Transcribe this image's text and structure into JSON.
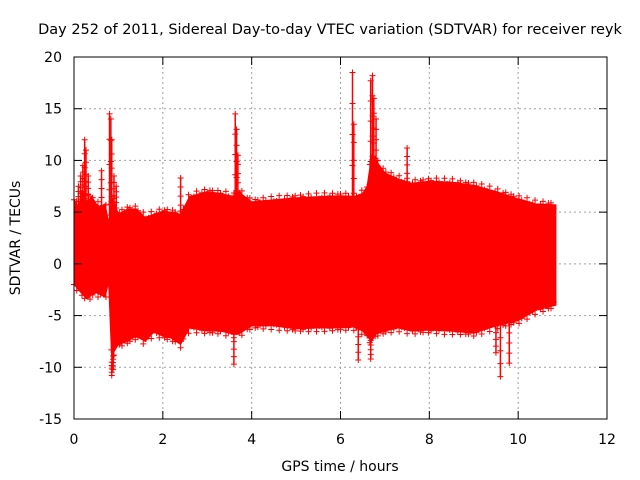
{
  "chart_data": {
    "type": "scatter",
    "title": "Day 252 of 2011, Sidereal Day-to-day VTEC variation (SDTVAR) for receiver reyk",
    "xlabel": "GPS time / hours",
    "ylabel": "SDTVAR / TECUs",
    "xlim": [
      0,
      12
    ],
    "ylim": [
      -15,
      20
    ],
    "x_ticks": [
      0,
      2,
      4,
      6,
      8,
      10,
      12
    ],
    "y_ticks": [
      -15,
      -10,
      -5,
      0,
      5,
      10,
      15,
      20
    ],
    "x_tick_labels": [
      "0",
      "2",
      "4",
      "6",
      "8",
      "10",
      "12"
    ],
    "y_tick_labels": [
      "-15",
      "-10",
      "-5",
      "0",
      "5",
      "10",
      "15",
      "20"
    ],
    "grid": true,
    "legend": "none",
    "marker": "+",
    "series": [
      {
        "name": "SDTVAR",
        "color": "#ff0000",
        "envelope": {
          "x": [
            0.0,
            0.1,
            0.2,
            0.3,
            0.4,
            0.5,
            0.6,
            0.7,
            0.78,
            0.85,
            0.9,
            1.0,
            1.2,
            1.4,
            1.6,
            1.8,
            2.0,
            2.2,
            2.4,
            2.6,
            3.0,
            3.3,
            3.6,
            3.7,
            4.0,
            4.5,
            5.0,
            5.5,
            6.0,
            6.3,
            6.5,
            6.6,
            6.7,
            6.8,
            7.0,
            7.3,
            7.6,
            8.0,
            8.5,
            9.0,
            9.5,
            10.0,
            10.4,
            10.85
          ],
          "upper": [
            6.2,
            5.5,
            7.0,
            6.0,
            6.5,
            5.8,
            5.5,
            5.8,
            4.0,
            6.5,
            6.0,
            4.8,
            5.3,
            5.3,
            4.5,
            4.8,
            5.1,
            5.0,
            4.8,
            6.5,
            7.0,
            6.8,
            6.5,
            7.0,
            6.0,
            6.2,
            6.4,
            6.5,
            6.6,
            6.5,
            6.8,
            7.5,
            10.5,
            10.0,
            8.8,
            8.2,
            7.8,
            8.0,
            7.9,
            7.6,
            7.0,
            6.3,
            5.8,
            5.7
          ],
          "lower": [
            -2.0,
            -2.5,
            -3.0,
            -3.4,
            -3.0,
            -2.8,
            -3.0,
            -3.2,
            -1.8,
            -9.5,
            -8.5,
            -7.8,
            -7.5,
            -7.0,
            -7.5,
            -6.6,
            -7.0,
            -7.2,
            -7.8,
            -6.2,
            -6.5,
            -6.5,
            -6.8,
            -6.8,
            -6.0,
            -6.0,
            -6.3,
            -6.2,
            -6.2,
            -6.1,
            -6.5,
            -7.0,
            -7.5,
            -6.8,
            -6.5,
            -6.2,
            -6.5,
            -6.4,
            -6.5,
            -6.7,
            -6.0,
            -5.5,
            -4.5,
            -4.0
          ]
        },
        "spikes": [
          {
            "x": 0.1,
            "y": 7.5
          },
          {
            "x": 0.15,
            "y": 8.5
          },
          {
            "x": 0.2,
            "y": 9.5
          },
          {
            "x": 0.24,
            "y": 12.0
          },
          {
            "x": 0.27,
            "y": 11.0
          },
          {
            "x": 0.32,
            "y": 8.5
          },
          {
            "x": 0.62,
            "y": 9.0
          },
          {
            "x": 0.8,
            "y": 14.5
          },
          {
            "x": 0.83,
            "y": 14.0
          },
          {
            "x": 0.85,
            "y": 12.0
          },
          {
            "x": 0.9,
            "y": 8.5
          },
          {
            "x": 0.95,
            "y": 7.5
          },
          {
            "x": 0.85,
            "y": -10.8
          },
          {
            "x": 0.88,
            "y": -10.2
          },
          {
            "x": 2.4,
            "y": 8.3
          },
          {
            "x": 3.63,
            "y": 14.5
          },
          {
            "x": 3.66,
            "y": 13.0
          },
          {
            "x": 3.69,
            "y": 10.5
          },
          {
            "x": 3.6,
            "y": -9.7
          },
          {
            "x": 6.27,
            "y": 18.5
          },
          {
            "x": 6.3,
            "y": 13.5
          },
          {
            "x": 6.4,
            "y": -9.3
          },
          {
            "x": 6.68,
            "y": 17.7
          },
          {
            "x": 6.72,
            "y": 18.2
          },
          {
            "x": 6.75,
            "y": 16.0
          },
          {
            "x": 6.8,
            "y": 14.0
          },
          {
            "x": 6.68,
            "y": -9.2
          },
          {
            "x": 7.5,
            "y": 11.2
          },
          {
            "x": 9.6,
            "y": -10.9
          },
          {
            "x": 9.8,
            "y": -9.6
          },
          {
            "x": 9.5,
            "y": -8.6
          }
        ]
      }
    ]
  }
}
